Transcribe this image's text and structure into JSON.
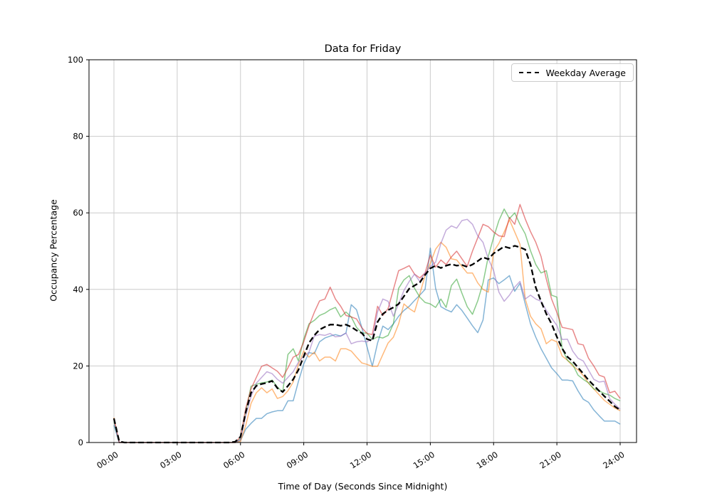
{
  "figure": {
    "legend": {
      "items": [
        {
          "label": "Weekday Average",
          "style": "dashed",
          "color": "#000000"
        }
      ]
    }
  },
  "chart_data": {
    "type": "line",
    "title": "Data for Friday",
    "xlabel": "Time of Day (Seconds Since Midnight)",
    "ylabel": "Occupancy Percentage",
    "grid": true,
    "grid_color": "#cccccc",
    "legend_position": "top-right",
    "ylim": [
      0,
      100
    ],
    "xlim_hours": [
      0,
      24
    ],
    "y_ticks": [
      0,
      20,
      40,
      60,
      80,
      100
    ],
    "x_tick_hours": [
      0,
      3,
      6,
      9,
      12,
      15,
      18,
      21,
      24
    ],
    "x_tick_labels": [
      "00:00",
      "03:00",
      "06:00",
      "09:00",
      "12:00",
      "15:00",
      "18:00",
      "21:00",
      "24:00"
    ],
    "x_start_hour": 0,
    "x_step_hours": 0.25,
    "series": [
      {
        "name": "series-1",
        "color": "#1f77b4",
        "alpha": 0.55,
        "width": 1.5,
        "dash": "none",
        "values": [
          4.5,
          0,
          0,
          0,
          0,
          0,
          0,
          0,
          0,
          0,
          0,
          0,
          0,
          0,
          0,
          0,
          0,
          0,
          0,
          0,
          0,
          0,
          0,
          0,
          0.5,
          3.5,
          5,
          6.3,
          6.3,
          7.5,
          8,
          8.3,
          8.3,
          10.9,
          10.9,
          16,
          20.5,
          23.5,
          23.2,
          26.3,
          27.3,
          27.8,
          28.2,
          27.8,
          28.6,
          36,
          34.7,
          30.1,
          25,
          19.9,
          26,
          30.4,
          29.5,
          31,
          33,
          34.5,
          35.6,
          37.1,
          38.5,
          40,
          50.8,
          40.3,
          35.5,
          34.7,
          34.1,
          36,
          34.5,
          32.5,
          30.5,
          28.7,
          32,
          42.5,
          43,
          41.5,
          42.5,
          43.6,
          39.5,
          41.6,
          36.2,
          31,
          27.5,
          24.5,
          22,
          19.5,
          18,
          16.3,
          16.3,
          16.1,
          13.5,
          11.3,
          10.5,
          8.5,
          7,
          5.6,
          5.6,
          5.6,
          4.8
        ]
      },
      {
        "name": "series-2",
        "color": "#ff7f0e",
        "alpha": 0.55,
        "width": 1.5,
        "dash": "none",
        "values": [
          6.5,
          0,
          0,
          0,
          0,
          0,
          0,
          0,
          0,
          0,
          0,
          0,
          0,
          0,
          0,
          0,
          0,
          0,
          0,
          0,
          0,
          0,
          0,
          0,
          0.3,
          4.5,
          10.2,
          13,
          14.3,
          13,
          14,
          11.5,
          12,
          13.5,
          15.8,
          20.4,
          23.9,
          22.3,
          23.6,
          21.3,
          22.3,
          22.3,
          21.3,
          24.5,
          24.5,
          23.9,
          22.3,
          20.8,
          20.4,
          19.9,
          19.9,
          23,
          26,
          27.5,
          31,
          36.2,
          35,
          34.1,
          38.8,
          43.6,
          46.8,
          50.5,
          52.3,
          51,
          48,
          47.7,
          46,
          44.3,
          44.3,
          41.7,
          40,
          39.3,
          49.9,
          52,
          55,
          58.2,
          55,
          51.8,
          37.5,
          33,
          31,
          29.7,
          25.8,
          26.9,
          26.3,
          22.6,
          21.5,
          20,
          19,
          17.5,
          15.5,
          14,
          12.5,
          11,
          10,
          9,
          8.3
        ]
      },
      {
        "name": "series-3",
        "color": "#2ca02c",
        "alpha": 0.55,
        "width": 1.5,
        "dash": "none",
        "values": [
          5.5,
          0,
          0,
          0,
          0,
          0,
          0,
          0,
          0,
          0,
          0,
          0,
          0,
          0,
          0,
          0,
          0,
          0,
          0,
          0,
          0,
          0,
          0,
          0,
          1,
          8,
          14.7,
          15.2,
          15.6,
          15.8,
          16.3,
          14.5,
          13.2,
          23,
          24.5,
          21.3,
          27,
          31,
          31.9,
          33.2,
          33.8,
          34.7,
          35.3,
          32.8,
          34.1,
          32.8,
          30.1,
          28.6,
          28.6,
          26.9,
          27.6,
          27.3,
          28,
          31,
          40.3,
          42.5,
          43.6,
          40.3,
          38,
          36.6,
          36.2,
          35.3,
          37.5,
          35.3,
          41,
          42.7,
          39,
          35.5,
          33.5,
          37,
          41.7,
          48.6,
          53.6,
          58,
          61,
          58.5,
          60,
          57,
          54.5,
          50.1,
          46.5,
          44.3,
          44.9,
          38.5,
          38,
          24.5,
          21.5,
          20.4,
          17.6,
          16.5,
          15.6,
          14,
          13.5,
          12.8,
          12.4,
          11.5,
          10.9
        ]
      },
      {
        "name": "series-4",
        "color": "#d62728",
        "alpha": 0.55,
        "width": 1.5,
        "dash": "none",
        "values": [
          6,
          0,
          0,
          0,
          0,
          0,
          0,
          0,
          0,
          0,
          0,
          0,
          0,
          0,
          0,
          0,
          0,
          0,
          0,
          0,
          0,
          0,
          0,
          0,
          1.5,
          9,
          14,
          17,
          19.9,
          20.4,
          19.5,
          18.6,
          17,
          19.5,
          22.3,
          23,
          26.3,
          30.5,
          34,
          37,
          37.5,
          40.6,
          37.5,
          35.6,
          33.2,
          32.8,
          32.3,
          30,
          28.5,
          28.2,
          35.6,
          33.2,
          35,
          40,
          44.9,
          45.5,
          46.2,
          44,
          43,
          44.3,
          49,
          45.8,
          47.7,
          46.5,
          48.5,
          50,
          48,
          46,
          50,
          53.5,
          57,
          56.4,
          55,
          54,
          53.8,
          58.8,
          57,
          62.2,
          58.4,
          55.1,
          52.3,
          48.6,
          42.7,
          37.5,
          34,
          30.1,
          29.8,
          29.5,
          25.8,
          25.5,
          22,
          20,
          17.6,
          17.1,
          13,
          13.4,
          11.5
        ]
      },
      {
        "name": "series-5",
        "color": "#9467bd",
        "alpha": 0.55,
        "width": 1.5,
        "dash": "none",
        "values": [
          5.8,
          0,
          0,
          0,
          0,
          0,
          0,
          0,
          0,
          0,
          0,
          0,
          0,
          0,
          0,
          0,
          0,
          0,
          0,
          0,
          0,
          0,
          0,
          0,
          0.8,
          7,
          12,
          15.5,
          17,
          18.5,
          18,
          16.5,
          15.5,
          17,
          18.5,
          21,
          22.5,
          23.6,
          27.8,
          28.2,
          28,
          28.5,
          27.6,
          27.8,
          28.6,
          25.8,
          26.3,
          26.5,
          26.3,
          27,
          34.1,
          37.5,
          36.9,
          33,
          36.2,
          39.7,
          42.1,
          44,
          42.1,
          44.3,
          46,
          47.1,
          52,
          55.5,
          56.6,
          56,
          58,
          58.3,
          57,
          54,
          52.3,
          48,
          44.9,
          39.3,
          36.9,
          38.5,
          40.6,
          42.1,
          37.5,
          38.5,
          37.5,
          36.9,
          34.5,
          32.5,
          30.6,
          26.9,
          27,
          23.9,
          22,
          21.3,
          18.9,
          16.5,
          15.8,
          16,
          11.5,
          10,
          8.7
        ]
      },
      {
        "name": "weekday-average",
        "legend_label": "Weekday Average",
        "color": "#000000",
        "alpha": 1,
        "width": 2.3,
        "dash": "8 4",
        "values": [
          6.3,
          0.3,
          0,
          0,
          0,
          0,
          0,
          0,
          0,
          0,
          0,
          0,
          0,
          0,
          0,
          0,
          0,
          0,
          0,
          0,
          0,
          0,
          0,
          0.2,
          1.5,
          8,
          13,
          14.8,
          15.3,
          15.6,
          16.1,
          14.2,
          13.2,
          14.8,
          16.5,
          19,
          22.5,
          26,
          28,
          29.5,
          30.2,
          30.8,
          30.8,
          30.5,
          30.8,
          30.2,
          29.3,
          28.6,
          27,
          26.6,
          31.5,
          33.6,
          34.6,
          35.3,
          36.2,
          38.2,
          40.2,
          41,
          41.8,
          43.8,
          45.5,
          46.2,
          45.6,
          46.2,
          46.6,
          46.2,
          46.4,
          45.9,
          46.5,
          47.4,
          48.4,
          47.9,
          49.4,
          50.3,
          51.2,
          50.8,
          51.4,
          51,
          50.4,
          46.5,
          40.5,
          36.9,
          33.6,
          31,
          27.6,
          24.6,
          22.4,
          21.2,
          19.6,
          18,
          16.3,
          14.9,
          13.5,
          12.1,
          10.8,
          9.4,
          8.5
        ]
      }
    ]
  }
}
